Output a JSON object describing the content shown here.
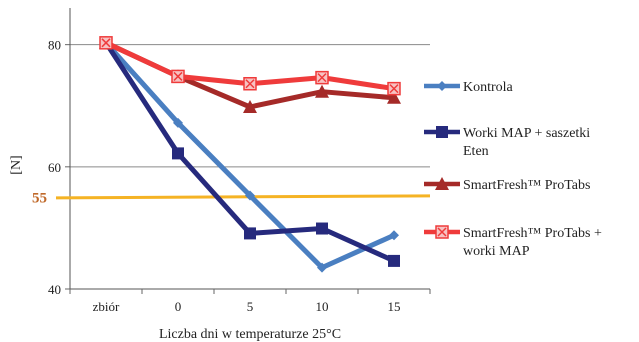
{
  "chart_data": {
    "type": "line",
    "categories": [
      "zbiór",
      "0",
      "5",
      "10",
      "15"
    ],
    "xlabel": "Liczba  dni w temperaturze  25°C",
    "ylabel": "[N]",
    "ylim": [
      40,
      86
    ],
    "yticks": [
      40,
      60,
      80
    ],
    "grid": true,
    "legend_position": "right",
    "reference_line": {
      "value": 55,
      "label": "55",
      "color": "#f5b324",
      "label_color": "#c0692a"
    },
    "series": [
      {
        "name": "Kontrola",
        "color": "#4a7fc1",
        "marker": "diamond",
        "values": [
          80.3,
          67.2,
          55.3,
          43.5,
          48.8
        ]
      },
      {
        "name": "Worki MAP + saszetki Eten",
        "color": "#262a7d",
        "marker": "square",
        "values": [
          80.3,
          62.2,
          49.1,
          49.9,
          44.6
        ]
      },
      {
        "name": "SmartFresh™ ProTabs",
        "color": "#a52a28",
        "marker": "triangle",
        "values": [
          80.3,
          74.8,
          69.8,
          72.3,
          71.3
        ]
      },
      {
        "name": "SmartFresh™ ProTabs + worki MAP",
        "color": "#ef3b3b",
        "marker": "xsquare",
        "values": [
          80.3,
          74.8,
          73.6,
          74.6,
          72.8
        ]
      }
    ]
  }
}
